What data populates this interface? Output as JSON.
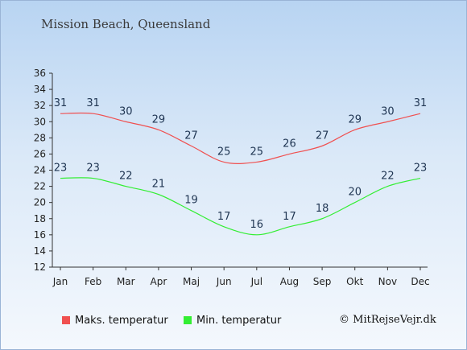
{
  "chart_data": {
    "type": "line",
    "title": "Mission Beach, Queensland",
    "categories": [
      "Jan",
      "Feb",
      "Mar",
      "Apr",
      "Maj",
      "Jun",
      "Jul",
      "Aug",
      "Sep",
      "Okt",
      "Nov",
      "Dec"
    ],
    "series": [
      {
        "name": "Maks. temperatur",
        "color": "#f05050",
        "values": [
          31,
          31,
          30,
          29,
          27,
          25,
          25,
          26,
          27,
          29,
          30,
          31
        ]
      },
      {
        "name": "Min. temperatur",
        "color": "#33ee33",
        "values": [
          23,
          23,
          22,
          21,
          19,
          17,
          16,
          17,
          18,
          20,
          22,
          23
        ]
      }
    ],
    "ylim": [
      12,
      36
    ],
    "yticks": [
      12,
      14,
      16,
      18,
      20,
      22,
      24,
      26,
      28,
      30,
      32,
      34,
      36
    ],
    "grid": false,
    "legend": "bottom-left"
  },
  "copyright": "© MitRejseVejr.dk"
}
